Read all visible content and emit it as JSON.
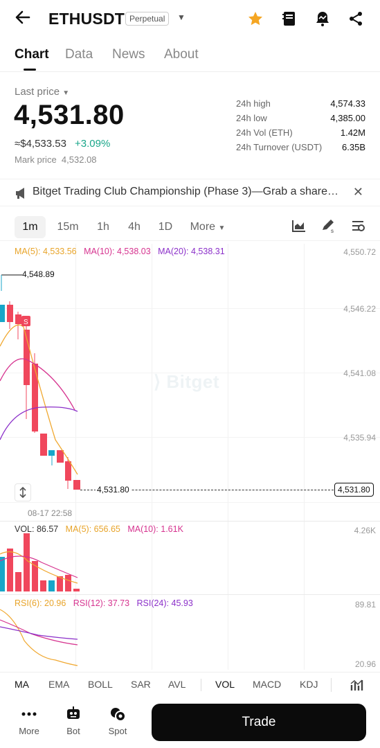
{
  "header": {
    "pair": "ETHUSDT",
    "contract_type": "Perpetual"
  },
  "tabs": [
    "Chart",
    "Data",
    "News",
    "About"
  ],
  "ticker": {
    "last_price_label": "Last price",
    "last_price": "4,531.80",
    "usd_value": "≈$4,533.53",
    "change_pct": "+3.09%",
    "mark_price_label": "Mark price",
    "mark_price": "4,532.08",
    "stats": [
      {
        "label": "24h high",
        "value": "4,574.33"
      },
      {
        "label": "24h low",
        "value": "4,385.00"
      },
      {
        "label": "24h Vol (ETH)",
        "value": "1.42M"
      },
      {
        "label": "24h Turnover (USDT)",
        "value": "6.35B"
      }
    ]
  },
  "banner": {
    "text": "Bitget Trading Club Championship (Phase 3)—Grab a share…"
  },
  "timeframes": [
    "1m",
    "15m",
    "1h",
    "4h",
    "1D",
    "More"
  ],
  "chart": {
    "ma5": "MA(5): 4,533.56",
    "ma10": "MA(10): 4,538.03",
    "ma20": "MA(20): 4,538.31",
    "price_axis": [
      "4,550.72",
      "4,546.22",
      "4,541.08",
      "4,535.94"
    ],
    "high_marker": "4,548.89",
    "current_price_line": "4,531.80",
    "current_price_tag": "4,531.80",
    "time_label": "08-17 22:58",
    "watermark": "Bitget",
    "sell_marker": "S",
    "colors": {
      "up": "#18a6c9",
      "down": "#f0475c",
      "ma5": "#f0a830",
      "ma10": "#d6338f",
      "ma20": "#8b2fc9"
    }
  },
  "volume": {
    "vol": "VOL: 86.57",
    "ma5": "MA(5): 656.65",
    "ma10": "MA(10): 1.61K",
    "axis_top": "4.26K"
  },
  "rsi": {
    "rsi6": "RSI(6): 20.96",
    "rsi12": "RSI(12): 37.73",
    "rsi24": "RSI(24): 45.93",
    "axis_top": "89.81",
    "axis_bottom": "20.96"
  },
  "indicators": [
    "MA",
    "EMA",
    "BOLL",
    "SAR",
    "AVL",
    "VOL",
    "MACD",
    "KDJ"
  ],
  "bottom_nav": [
    {
      "label": "More",
      "icon": "more-dots-icon"
    },
    {
      "label": "Bot",
      "icon": "bot-icon"
    },
    {
      "label": "Spot",
      "icon": "spot-icon"
    }
  ],
  "trade_button": "Trade"
}
